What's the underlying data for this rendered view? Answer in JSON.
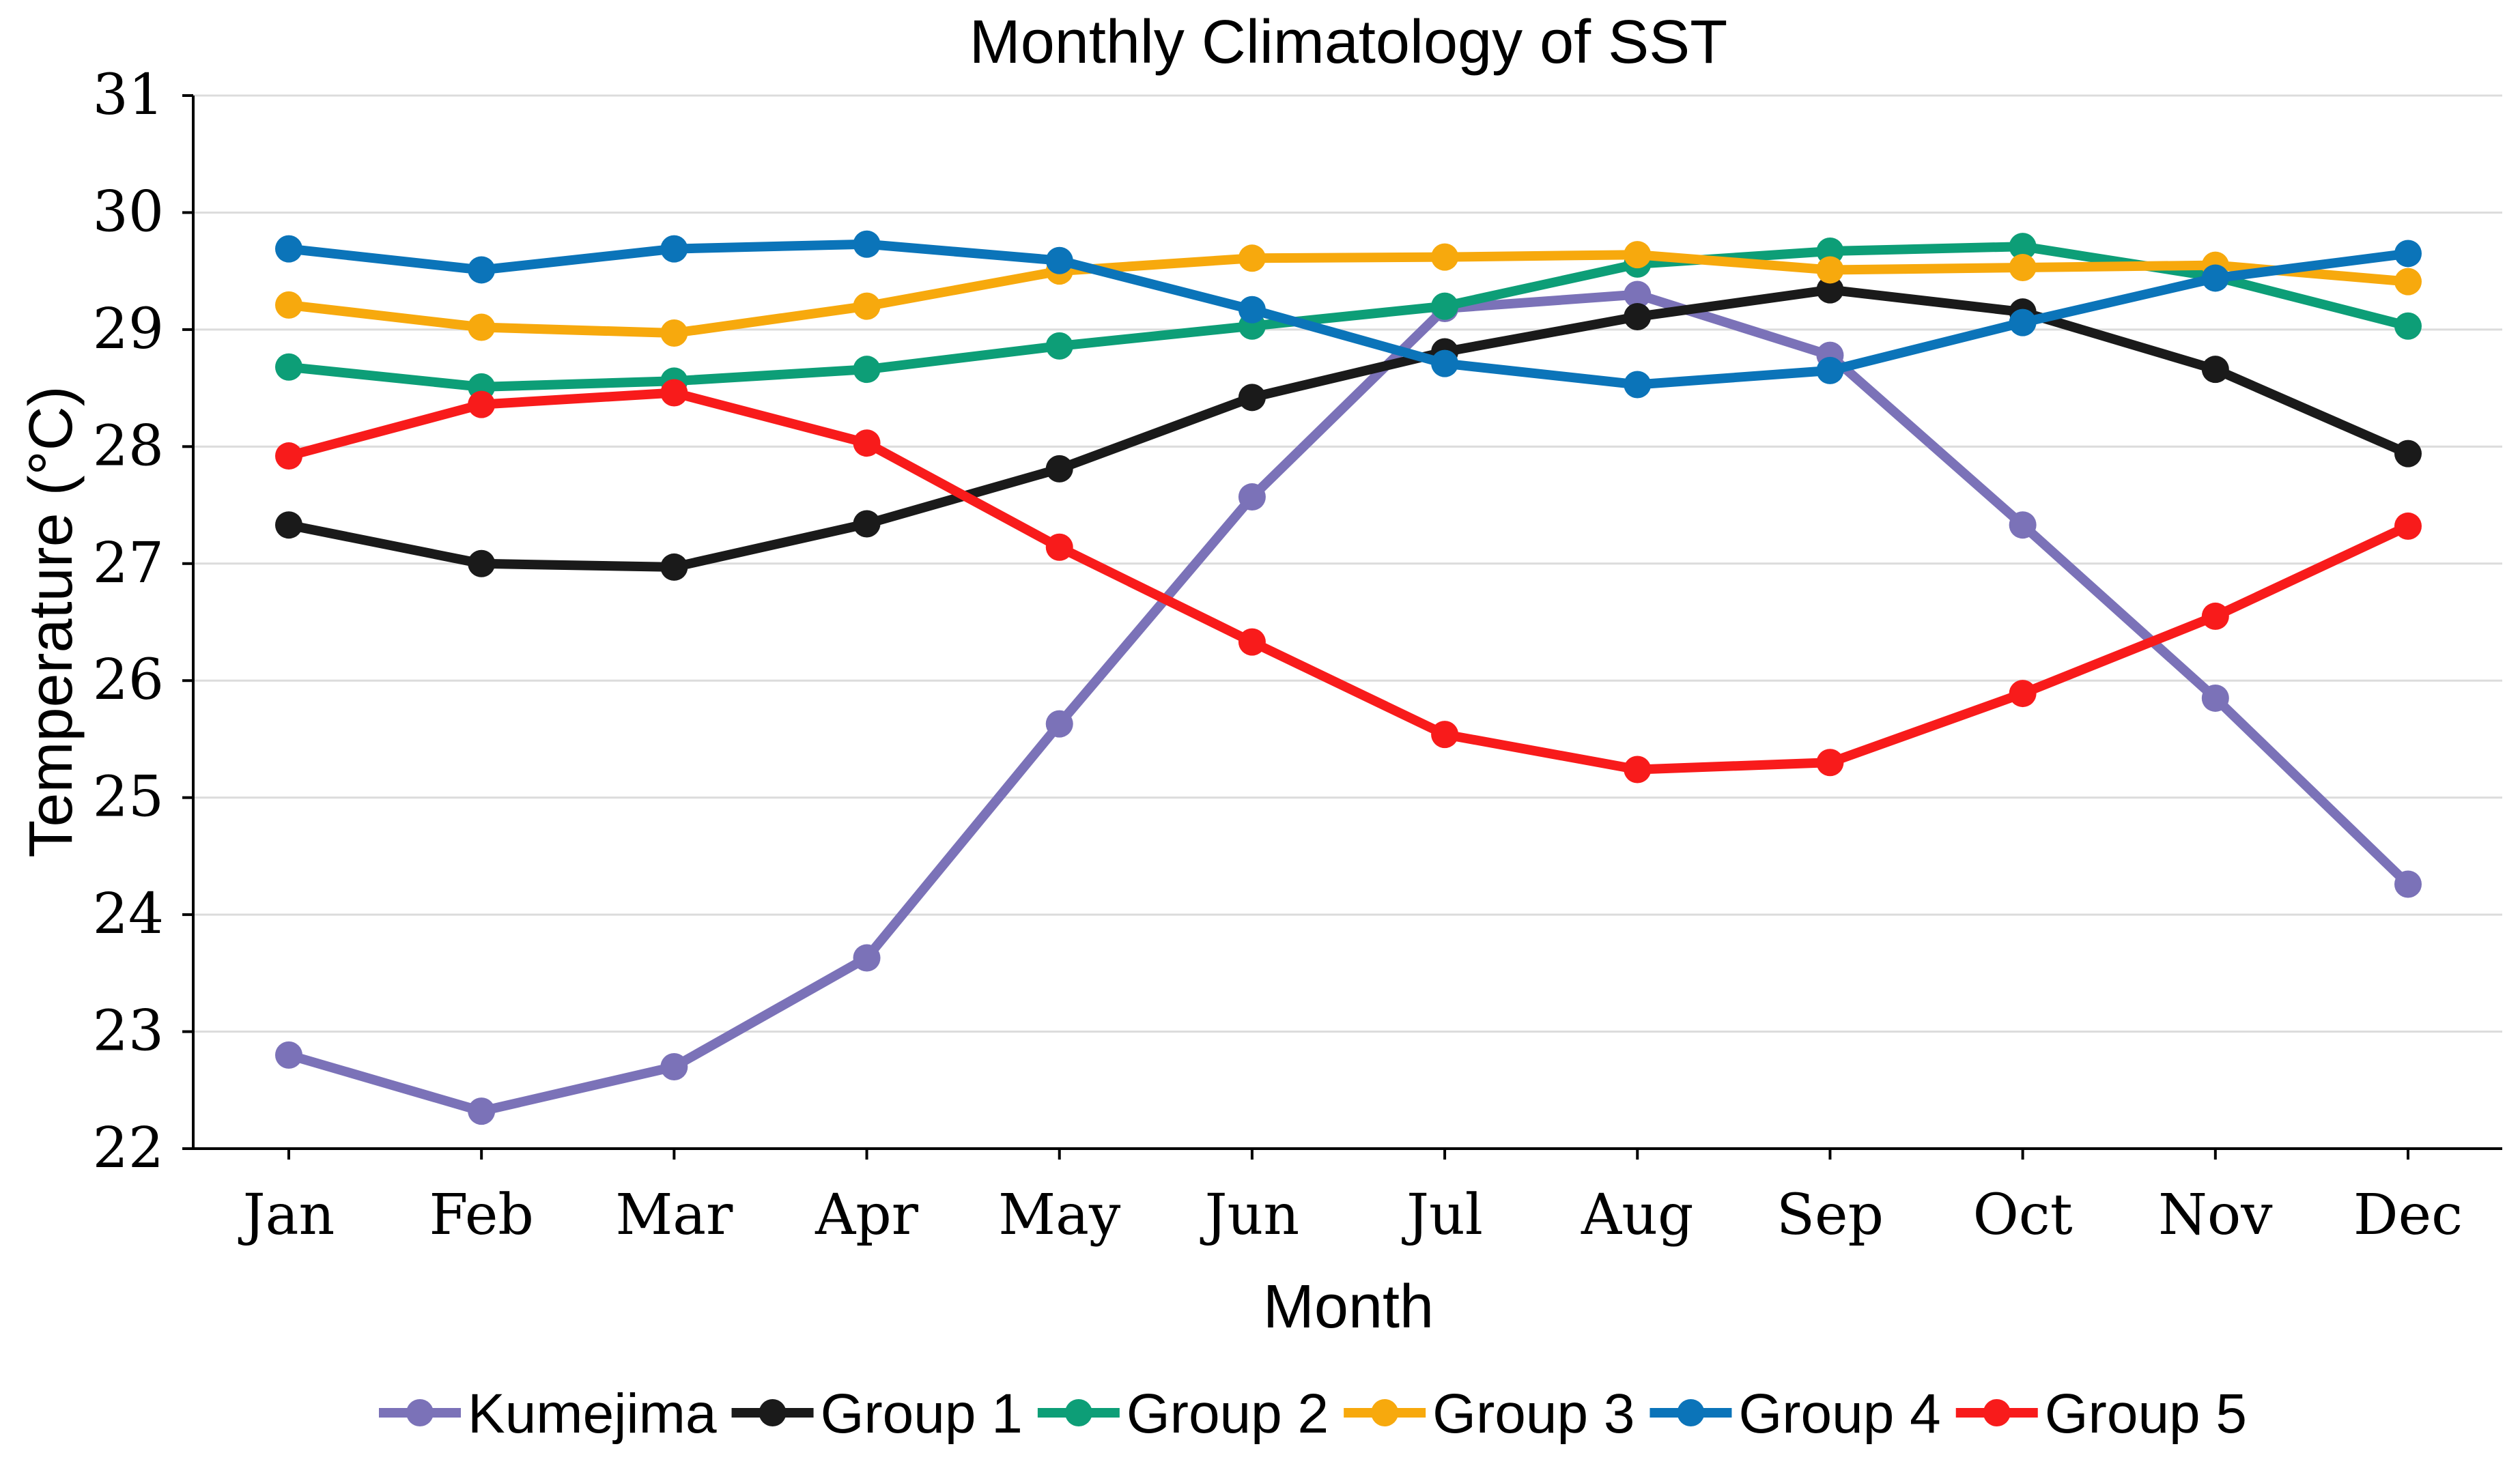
{
  "chart_data": {
    "type": "line",
    "title": "Monthly Climatology of SST",
    "xlabel": "Month",
    "ylabel": "Temperature (°C)",
    "categories": [
      "Jan",
      "Feb",
      "Mar",
      "Apr",
      "May",
      "Jun",
      "Jul",
      "Aug",
      "Sep",
      "Oct",
      "Nov",
      "Dec"
    ],
    "ylim": [
      22,
      31
    ],
    "yticks": [
      "22",
      "23",
      "24",
      "25",
      "26",
      "27",
      "28",
      "29",
      "30",
      "31"
    ],
    "grid": "horizontal",
    "legend_position": "bottom",
    "series": [
      {
        "name": "Kumejima",
        "color": "#7b72b8",
        "values": [
          22.8,
          22.32,
          22.7,
          23.63,
          25.63,
          27.57,
          29.18,
          29.3,
          28.78,
          27.33,
          25.85,
          24.26
        ]
      },
      {
        "name": "Group 1",
        "color": "#1a1a1a",
        "values": [
          27.33,
          27.0,
          26.97,
          27.34,
          27.81,
          28.42,
          28.81,
          29.11,
          29.34,
          29.15,
          28.66,
          27.94
        ]
      },
      {
        "name": "Group 2",
        "color": "#0d9e77",
        "values": [
          28.68,
          28.51,
          28.56,
          28.66,
          28.86,
          29.03,
          29.2,
          29.56,
          29.67,
          29.71,
          29.45,
          29.03
        ]
      },
      {
        "name": "Group 3",
        "color": "#f7a90d",
        "values": [
          29.21,
          29.02,
          28.97,
          29.2,
          29.5,
          29.61,
          29.62,
          29.64,
          29.51,
          29.53,
          29.55,
          29.41
        ]
      },
      {
        "name": "Group 4",
        "color": "#0b74b9",
        "values": [
          29.69,
          29.51,
          29.69,
          29.73,
          29.59,
          29.17,
          28.71,
          28.53,
          28.65,
          29.06,
          29.44,
          29.65
        ]
      },
      {
        "name": "Group 5",
        "color": "#f81b1b",
        "values": [
          27.92,
          28.36,
          28.46,
          28.03,
          27.14,
          26.33,
          25.54,
          25.24,
          25.3,
          25.89,
          26.55,
          27.32
        ]
      }
    ]
  }
}
